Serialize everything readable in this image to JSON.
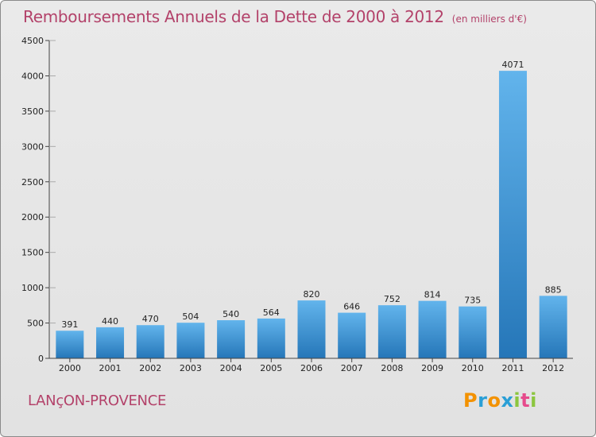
{
  "title": "Remboursements Annuels de la Dette de 2000 à 2012",
  "subtitle": "(en milliers d'€)",
  "commune": "LANçON-PROVENCE",
  "logo": {
    "text": "Proxiti",
    "letters": [
      "P",
      "r",
      "o",
      "x",
      "i",
      "t",
      "i"
    ],
    "letter_colors": [
      "#f39200",
      "#2a9fd6",
      "#f39200",
      "#2a9fd6",
      "#8cc63f",
      "#e64b8c",
      "#8cc63f"
    ]
  },
  "colors": {
    "title": "#b3426a",
    "bar_light": "#62b4ec",
    "bar_dark": "#2576b8",
    "axis": "#444444",
    "grid_dash": "#aaaaaa"
  },
  "chart_data": {
    "type": "bar",
    "categories": [
      "2000",
      "2001",
      "2002",
      "2003",
      "2004",
      "2005",
      "2006",
      "2007",
      "2008",
      "2009",
      "2010",
      "2011",
      "2012"
    ],
    "values": [
      391,
      440,
      470,
      504,
      540,
      564,
      820,
      646,
      752,
      814,
      735,
      4071,
      885
    ],
    "title": "Remboursements Annuels de la Dette de 2000 à 2012",
    "subtitle": "(en milliers d'€)",
    "ylim": [
      0,
      4500
    ],
    "yticks": [
      0,
      500,
      1000,
      1500,
      2000,
      2500,
      3000,
      3500,
      4000,
      4500
    ],
    "grid": false,
    "data_labels": true
  }
}
